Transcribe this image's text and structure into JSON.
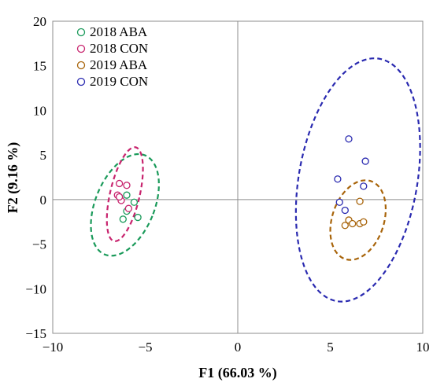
{
  "chart_data": {
    "type": "scatter",
    "title": "",
    "xlabel": "F1 (66.03 %)",
    "ylabel": "F2 (9.16 %)",
    "xlim": [
      -10,
      10
    ],
    "ylim": [
      -15,
      20
    ],
    "xticks": [
      -10,
      -5,
      0,
      5,
      10
    ],
    "yticks": [
      -15,
      -10,
      -5,
      0,
      5,
      10,
      15,
      20
    ],
    "xtick_labels": [
      "−10",
      "−5",
      "0",
      "5",
      "10"
    ],
    "ytick_labels": [
      "−15",
      "−10",
      "−5",
      "0",
      "5",
      "10",
      "15",
      "20"
    ],
    "legend_position": "top-left",
    "grid": false,
    "series": [
      {
        "name": "2018 ABA",
        "color": "#1a9a5a",
        "points": [
          [
            -6.4,
            0.3
          ],
          [
            -6.0,
            0.5
          ],
          [
            -5.6,
            -0.3
          ],
          [
            -6.0,
            -1.3
          ],
          [
            -6.2,
            -2.2
          ],
          [
            -5.4,
            -2.0
          ]
        ],
        "ellipse": {
          "cx": -6.1,
          "cy": -0.6,
          "rx": 1.6,
          "ry": 6.0,
          "angle_deg": -22
        }
      },
      {
        "name": "2018 CON",
        "color": "#c8246e",
        "points": [
          [
            -6.4,
            1.8
          ],
          [
            -6.0,
            1.6
          ],
          [
            -6.5,
            0.5
          ],
          [
            -6.3,
            -0.1
          ],
          [
            -6.4,
            0.3
          ],
          [
            -5.9,
            -1.0
          ]
        ],
        "ellipse": {
          "cx": -6.1,
          "cy": 0.6,
          "rx": 0.8,
          "ry": 5.4,
          "angle_deg": -13
        }
      },
      {
        "name": "2019 ABA",
        "color": "#a8640a",
        "points": [
          [
            6.6,
            -0.2
          ],
          [
            6.0,
            -2.3
          ],
          [
            6.2,
            -2.7
          ],
          [
            5.8,
            -2.9
          ],
          [
            6.6,
            -2.7
          ],
          [
            6.8,
            -2.5
          ]
        ],
        "ellipse": {
          "cx": 6.5,
          "cy": -2.3,
          "rx": 1.4,
          "ry": 4.6,
          "angle_deg": -18
        }
      },
      {
        "name": "2019 CON",
        "color": "#2a2ab0",
        "points": [
          [
            6.0,
            6.8
          ],
          [
            6.9,
            4.3
          ],
          [
            5.4,
            2.3
          ],
          [
            6.8,
            1.5
          ],
          [
            5.5,
            -0.3
          ],
          [
            5.8,
            -1.2
          ]
        ],
        "ellipse": {
          "cx": 6.5,
          "cy": 2.2,
          "rx": 3.2,
          "ry": 13.8,
          "angle_deg": -10
        }
      }
    ]
  }
}
